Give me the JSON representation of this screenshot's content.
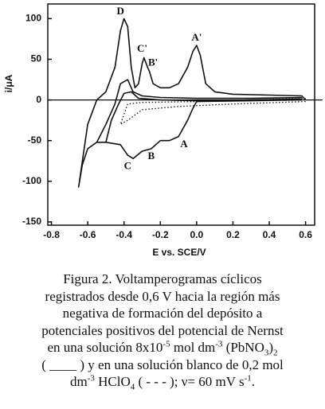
{
  "chart_data": {
    "type": "line",
    "x_label": "E vs. SCE/V",
    "y_label": "i/μA",
    "xlim": [
      -0.82,
      0.65
    ],
    "ylim": [
      -154,
      118
    ],
    "xticks": [
      -0.8,
      -0.6,
      -0.4,
      -0.2,
      {
        "value": 0,
        "label": "0.0"
      },
      0.2,
      0.4,
      0.6
    ],
    "yticks": [
      -150,
      -100,
      -50,
      0,
      50,
      100
    ],
    "zero_line": true,
    "series": [
      {
        "color": "#111111",
        "dash": "solid",
        "x": [
          0.58,
          0.3,
          0.0,
          -0.02,
          -0.05,
          -0.1,
          -0.15,
          -0.2,
          -0.25,
          -0.3,
          -0.35,
          -0.38,
          -0.42,
          -0.5,
          -0.55,
          -0.6,
          -0.63,
          -0.65,
          -0.6,
          -0.55,
          -0.5,
          -0.45,
          -0.42,
          -0.4,
          -0.38,
          -0.36,
          -0.34,
          -0.32,
          -0.3,
          -0.29,
          -0.27,
          -0.26,
          -0.24,
          -0.2,
          -0.15,
          -0.1,
          -0.05,
          -0.02,
          0.0,
          0.02,
          0.05,
          0.1,
          0.2,
          0.4,
          0.58,
          0.6
        ],
        "values": [
          0,
          -1,
          -2,
          -10,
          -25,
          -45,
          -50,
          -50,
          -60,
          -63,
          -72,
          -68,
          -55,
          -52,
          -52,
          -60,
          -80,
          -107,
          -30,
          0,
          10,
          40,
          85,
          100,
          90,
          40,
          15,
          20,
          45,
          52,
          40,
          35,
          20,
          15,
          15,
          20,
          40,
          60,
          67,
          55,
          20,
          10,
          7,
          6,
          5,
          0
        ]
      },
      {
        "color": "#111111",
        "dash": "solid",
        "x": [
          -0.55,
          -0.5,
          -0.45,
          -0.42,
          -0.38,
          -0.35,
          -0.3,
          -0.2,
          0.0,
          0.3,
          0.58
        ],
        "values": [
          -52,
          -30,
          -5,
          20,
          25,
          10,
          5,
          3,
          2,
          2,
          3
        ]
      },
      {
        "color": "#111111",
        "dash": "solid",
        "x": [
          -0.5,
          -0.47,
          -0.43,
          -0.4,
          -0.36,
          -0.32,
          -0.2,
          0.0,
          0.58
        ],
        "values": [
          -52,
          -25,
          -5,
          8,
          10,
          2,
          0,
          -1,
          1
        ]
      },
      {
        "color": "#111111",
        "dash": "dotted",
        "x": [
          0.6,
          0.2,
          -0.1,
          -0.3,
          -0.38,
          -0.42,
          -0.38,
          -0.3,
          0.0,
          0.6
        ],
        "values": [
          -2,
          -5,
          -8,
          -12,
          -25,
          -30,
          -5,
          -3,
          -2,
          2
        ]
      }
    ],
    "annotations": [
      {
        "text": "D",
        "x": -0.42,
        "y": 108
      },
      {
        "text": "C'",
        "x": -0.3,
        "y": 62
      },
      {
        "text": "B'",
        "x": -0.24,
        "y": 45
      },
      {
        "text": "A'",
        "x": -0.0,
        "y": 76
      },
      {
        "text": "C",
        "x": -0.38,
        "y": -82
      },
      {
        "text": "B",
        "x": -0.25,
        "y": -70
      },
      {
        "text": "A",
        "x": -0.07,
        "y": -55
      }
    ]
  },
  "caption": {
    "lines": [
      [
        {
          "text": "Figura 2. Voltamperogramas cíclicos"
        }
      ],
      [
        {
          "text": "registrados desde 0,6 V hacia la región más"
        }
      ],
      [
        {
          "text": "negativa de formación del depósito a"
        }
      ],
      [
        {
          "text": "potenciales positivos del potencial de Nernst"
        }
      ],
      [
        {
          "text": "en una solución 8x10"
        },
        {
          "text": "-5",
          "pos": "sup"
        },
        {
          "text": " mol dm"
        },
        {
          "text": "-3",
          "pos": "sup"
        },
        {
          "text": " (PbNO"
        },
        {
          "text": "3",
          "pos": "sub"
        },
        {
          "text": ")"
        },
        {
          "text": "2",
          "pos": "sub"
        }
      ],
      [
        {
          "text": "( ____ ) y en una solución blanco de 0,2 mol"
        }
      ],
      [
        {
          "text": "dm"
        },
        {
          "text": "-3",
          "pos": "sup"
        },
        {
          "text": " HClO"
        },
        {
          "text": "4",
          "pos": "sub"
        },
        {
          "text": " ( - - - ); ν= 60 mV s"
        },
        {
          "text": "-1",
          "pos": "sup"
        },
        {
          "text": "."
        }
      ]
    ]
  }
}
